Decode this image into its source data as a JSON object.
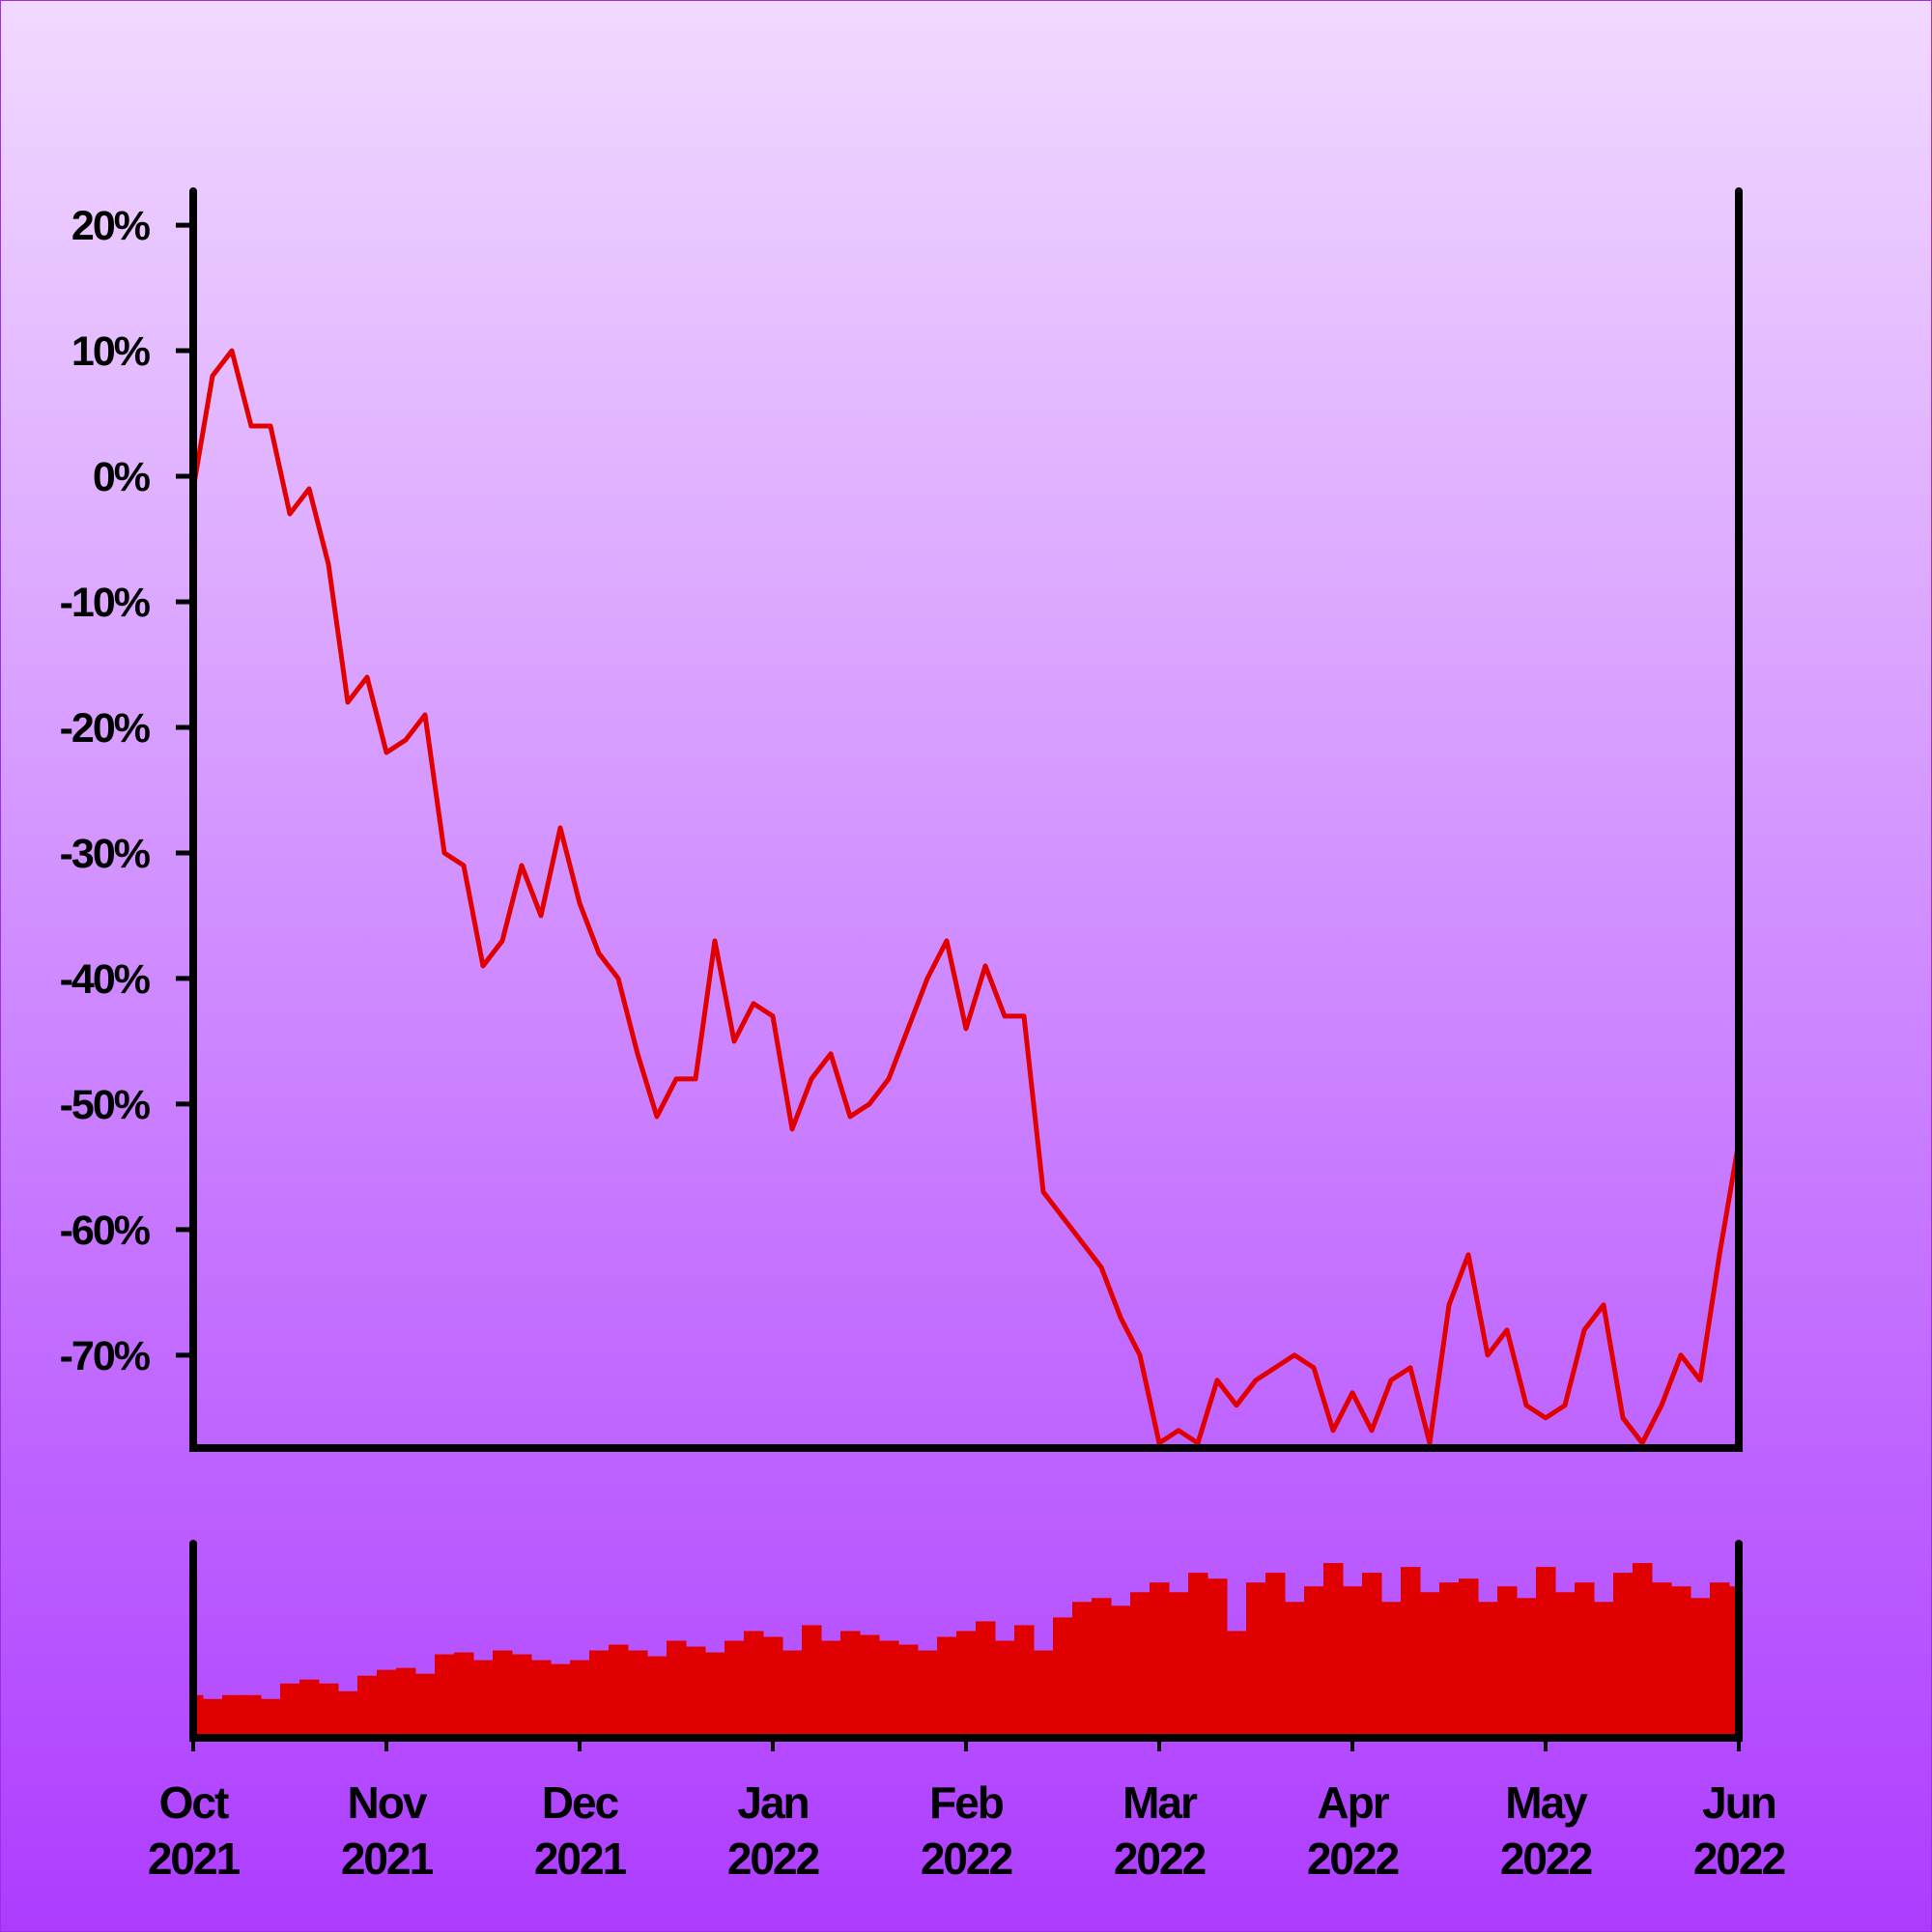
{
  "chart_data": {
    "type": "line",
    "categories": [
      "Oct 2021",
      null,
      null,
      null,
      null,
      null,
      null,
      null,
      null,
      null,
      "Nov 2021",
      null,
      null,
      null,
      null,
      null,
      null,
      null,
      null,
      null,
      "Dec 2021",
      null,
      null,
      null,
      null,
      null,
      null,
      null,
      null,
      null,
      "Jan 2022",
      null,
      null,
      null,
      null,
      null,
      null,
      null,
      null,
      null,
      "Feb 2022",
      null,
      null,
      null,
      null,
      null,
      null,
      null,
      null,
      null,
      "Mar 2022",
      null,
      null,
      null,
      null,
      null,
      null,
      null,
      null,
      null,
      "Apr 2022",
      null,
      null,
      null,
      null,
      null,
      null,
      null,
      null,
      null,
      "May 2022",
      null,
      null,
      null,
      null,
      null,
      null,
      null,
      null,
      null,
      "Jun 2022"
    ],
    "series": [
      {
        "color": "#e00000",
        "values": [
          -1,
          8,
          10,
          4,
          4,
          -3,
          -1,
          -7,
          -18,
          -16,
          -22,
          -21,
          -19,
          -30,
          -31,
          -39,
          -37,
          -31,
          -35,
          -28,
          -34,
          -38,
          -40,
          -46,
          -51,
          -48,
          -48,
          -37,
          -45,
          -42,
          -43,
          -52,
          -48,
          -46,
          -51,
          -50,
          -48,
          -44,
          -40,
          -37,
          -44,
          -39,
          -43,
          -43,
          -57,
          -59,
          -61,
          -63,
          -67,
          -70,
          -77,
          -76,
          -77,
          -72,
          -74,
          -72,
          -71,
          -70,
          -71,
          -76,
          -73,
          -76,
          -72,
          -71,
          -77,
          -66,
          -62,
          -70,
          -68,
          -74,
          -75,
          -74,
          -68,
          -66,
          -75,
          -77,
          -74,
          -70,
          -72,
          -62,
          -53
        ]
      },
      {
        "type": "bar",
        "axis": "y2",
        "color": "#e00000",
        "values": [
          22,
          20,
          22,
          22,
          20,
          28,
          30,
          28,
          24,
          32,
          35,
          36,
          33,
          43,
          44,
          40,
          45,
          43,
          40,
          38,
          40,
          45,
          48,
          45,
          42,
          50,
          47,
          44,
          50,
          55,
          52,
          45,
          58,
          50,
          55,
          53,
          50,
          48,
          45,
          52,
          55,
          60,
          50,
          58,
          45,
          62,
          70,
          72,
          68,
          75,
          80,
          75,
          85,
          82,
          55,
          80,
          85,
          70,
          78,
          90,
          78,
          85,
          70,
          88,
          75,
          80,
          82,
          70,
          78,
          72,
          88,
          75,
          80,
          70,
          85,
          90,
          80,
          78,
          72,
          80,
          78
        ]
      }
    ],
    "ylim": [
      -77.4,
      22.7
    ],
    "yticks": [
      {
        "value": 20,
        "label": "20%"
      },
      {
        "value": 10,
        "label": "10%"
      },
      {
        "value": 0,
        "label": "0%"
      },
      {
        "value": -10,
        "label": "-10%"
      },
      {
        "value": -20,
        "label": "-20%"
      },
      {
        "value": -30,
        "label": "-30%"
      },
      {
        "value": -40,
        "label": "-40%"
      },
      {
        "value": -50,
        "label": "-50%"
      },
      {
        "value": -60,
        "label": "-60%"
      },
      {
        "value": -70,
        "label": "-70%"
      }
    ],
    "y2lim": [
      0,
      100
    ],
    "grid": false
  }
}
